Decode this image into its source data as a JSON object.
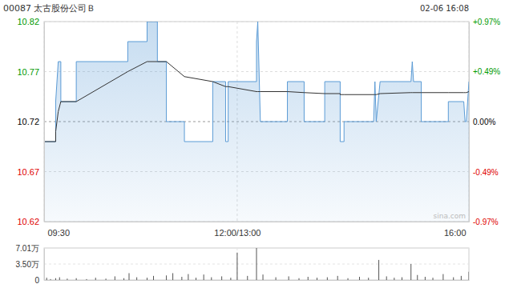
{
  "chart_data": [
    {
      "type": "line",
      "title": "00087 太古股份公司Ｂ",
      "subtitle": "02-06 16:08",
      "annotations": [
        "sina.com"
      ],
      "x": [
        0,
        9,
        9,
        10,
        11,
        13,
        13,
        25,
        25,
        65,
        65,
        80,
        80,
        88,
        88,
        95,
        95,
        109,
        109,
        131,
        131,
        141,
        141,
        143,
        143,
        165,
        165,
        166,
        168,
        189,
        189,
        202,
        202,
        218,
        218,
        230,
        230,
        233,
        233,
        256,
        257,
        258,
        261,
        285,
        286,
        287,
        293,
        293,
        314,
        314,
        326,
        327,
        328,
        330
      ],
      "xlim": [
        0,
        330
      ],
      "xticks": [
        {
          "value": 0,
          "label": "09:30"
        },
        {
          "value": 150,
          "label": "12:00/13:00"
        },
        {
          "value": 330,
          "label": "16:00"
        }
      ],
      "ylim": [
        10.62,
        10.82
      ],
      "yticks": [
        10.82,
        10.77,
        10.72,
        10.67,
        10.62
      ],
      "y2lim": [
        -0.97,
        0.97
      ],
      "y2ticks": [
        {
          "value": 0.97,
          "label": "+0.97%"
        },
        {
          "value": 0.49,
          "label": "+0.49%"
        },
        {
          "value": 0,
          "label": "0.00%"
        },
        {
          "value": -0.49,
          "label": "-0.49%"
        },
        {
          "value": -0.97,
          "label": "-0.97%"
        }
      ],
      "grid": true,
      "series": [
        {
          "type": "area",
          "color": "#5b9bd5",
          "values": [
            10.7,
            10.7,
            10.74,
            10.76,
            10.78,
            10.78,
            10.74,
            10.74,
            10.78,
            10.78,
            10.8,
            10.8,
            10.82,
            10.82,
            10.78,
            10.78,
            10.72,
            10.72,
            10.7,
            10.7,
            10.76,
            10.76,
            10.7,
            10.7,
            10.76,
            10.76,
            10.8,
            10.82,
            10.72,
            10.72,
            10.76,
            10.76,
            10.72,
            10.72,
            10.76,
            10.76,
            10.7,
            10.7,
            10.72,
            10.72,
            10.76,
            10.72,
            10.76,
            10.76,
            10.78,
            10.76,
            10.76,
            10.72,
            10.72,
            10.74,
            10.74,
            10.72,
            10.72,
            10.76
          ]
        },
        {
          "type": "line",
          "color": "#333333",
          "values": [
            10.7,
            10.7,
            10.71,
            10.72,
            10.73,
            10.74,
            10.74,
            10.74,
            10.74,
            10.77,
            10.77,
            10.78,
            10.78,
            10.78,
            10.78,
            10.78,
            10.78,
            10.765,
            10.765,
            10.76,
            10.76,
            10.755,
            10.755,
            10.755,
            10.755,
            10.75,
            10.75,
            10.75,
            10.75,
            10.75,
            10.75,
            10.749,
            10.749,
            10.748,
            10.748,
            10.748,
            10.747,
            10.747,
            10.747,
            10.747,
            10.747,
            10.747,
            10.748,
            10.749,
            10.749,
            10.749,
            10.749,
            10.749,
            10.749,
            10.749,
            10.749,
            10.749,
            10.749,
            10.75
          ]
        }
      ]
    },
    {
      "type": "bar",
      "x": [
        0,
        2,
        5,
        9,
        12,
        18,
        25,
        33,
        40,
        48,
        55,
        62,
        66,
        72,
        80,
        85,
        95,
        100,
        107,
        112,
        118,
        124,
        130,
        138,
        145,
        150,
        158,
        165,
        170,
        180,
        190,
        198,
        205,
        212,
        220,
        228,
        236,
        245,
        252,
        260,
        266,
        272,
        278,
        285,
        290,
        296,
        302,
        310,
        318,
        324,
        330
      ],
      "values": [
        0.3,
        0.5,
        0.2,
        0.4,
        0.6,
        0.3,
        0.4,
        0.2,
        0.5,
        0.3,
        0.8,
        0.4,
        1.5,
        0.6,
        0.5,
        0.9,
        1.0,
        1.5,
        0.7,
        1.3,
        0.5,
        1.2,
        0.6,
        0.8,
        0.5,
        6.0,
        0.9,
        7.01,
        1.2,
        0.6,
        0.8,
        0.4,
        0.7,
        0.5,
        0.6,
        0.9,
        0.4,
        0.7,
        0.5,
        4.4,
        0.8,
        0.5,
        0.6,
        3.5,
        1.1,
        0.7,
        0.5,
        1.3,
        0.6,
        0.9,
        1.8
      ],
      "color": "#555555",
      "xlim": [
        0,
        330
      ],
      "xticks": [
        0,
        150,
        330
      ],
      "ylim": [
        0,
        7.01
      ],
      "yticks": [
        {
          "value": 7.01,
          "label": "7.01万"
        },
        {
          "value": 3.5,
          "label": "3.50万"
        },
        0
      ],
      "grid": true,
      "tick_labels": "y"
    }
  ]
}
